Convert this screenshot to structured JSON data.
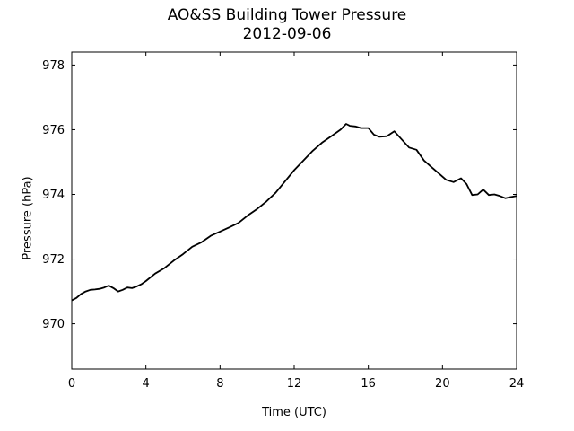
{
  "title": "AO&SS Building Tower Pressure",
  "subtitle": "2012-09-06",
  "chart_data": {
    "type": "line",
    "title": "AO&SS Building Tower Pressure",
    "subtitle": "2012-09-06",
    "xlabel": "Time (UTC)",
    "ylabel": "Pressure (hPa)",
    "xlim": [
      0,
      24
    ],
    "ylim": [
      968.6,
      978.4
    ],
    "xticks": [
      0,
      4,
      8,
      12,
      16,
      20,
      24
    ],
    "yticks": [
      970,
      972,
      974,
      976,
      978
    ],
    "grid": false,
    "line_color": "#000000",
    "series": [
      {
        "x": [
          0,
          0.25,
          0.5,
          0.75,
          1.0,
          1.25,
          1.5,
          1.75,
          2.0,
          2.25,
          2.5,
          2.75,
          3.0,
          3.25,
          3.5,
          3.75,
          4.0,
          4.5,
          5.0,
          5.5,
          6.0,
          6.5,
          7.0,
          7.5,
          8.0,
          8.5,
          9.0,
          9.5,
          10.0,
          10.5,
          11.0,
          11.5,
          12.0,
          12.5,
          13.0,
          13.5,
          14.0,
          14.5,
          14.8,
          15.0,
          15.3,
          15.6,
          16.0,
          16.3,
          16.6,
          17.0,
          17.4,
          17.8,
          18.2,
          18.6,
          19.0,
          19.4,
          19.8,
          20.2,
          20.6,
          21.0,
          21.3,
          21.6,
          21.9,
          22.2,
          22.5,
          22.8,
          23.1,
          23.4,
          23.7,
          24.0
        ],
        "y": [
          970.72,
          970.8,
          970.92,
          971.0,
          971.05,
          971.06,
          971.08,
          971.12,
          971.18,
          971.1,
          971.0,
          971.05,
          971.12,
          971.1,
          971.15,
          971.22,
          971.32,
          971.55,
          971.72,
          971.95,
          972.15,
          972.38,
          972.52,
          972.72,
          972.85,
          972.98,
          973.12,
          973.35,
          973.55,
          973.78,
          974.05,
          974.4,
          974.75,
          975.05,
          975.35,
          975.6,
          975.8,
          976.0,
          976.18,
          976.12,
          976.1,
          976.05,
          976.05,
          975.85,
          975.78,
          975.8,
          975.95,
          975.7,
          975.45,
          975.38,
          975.05,
          974.85,
          974.65,
          974.45,
          974.38,
          974.5,
          974.32,
          973.98,
          974.0,
          974.15,
          973.98,
          974.0,
          973.95,
          973.88,
          973.92,
          973.95
        ]
      }
    ]
  }
}
